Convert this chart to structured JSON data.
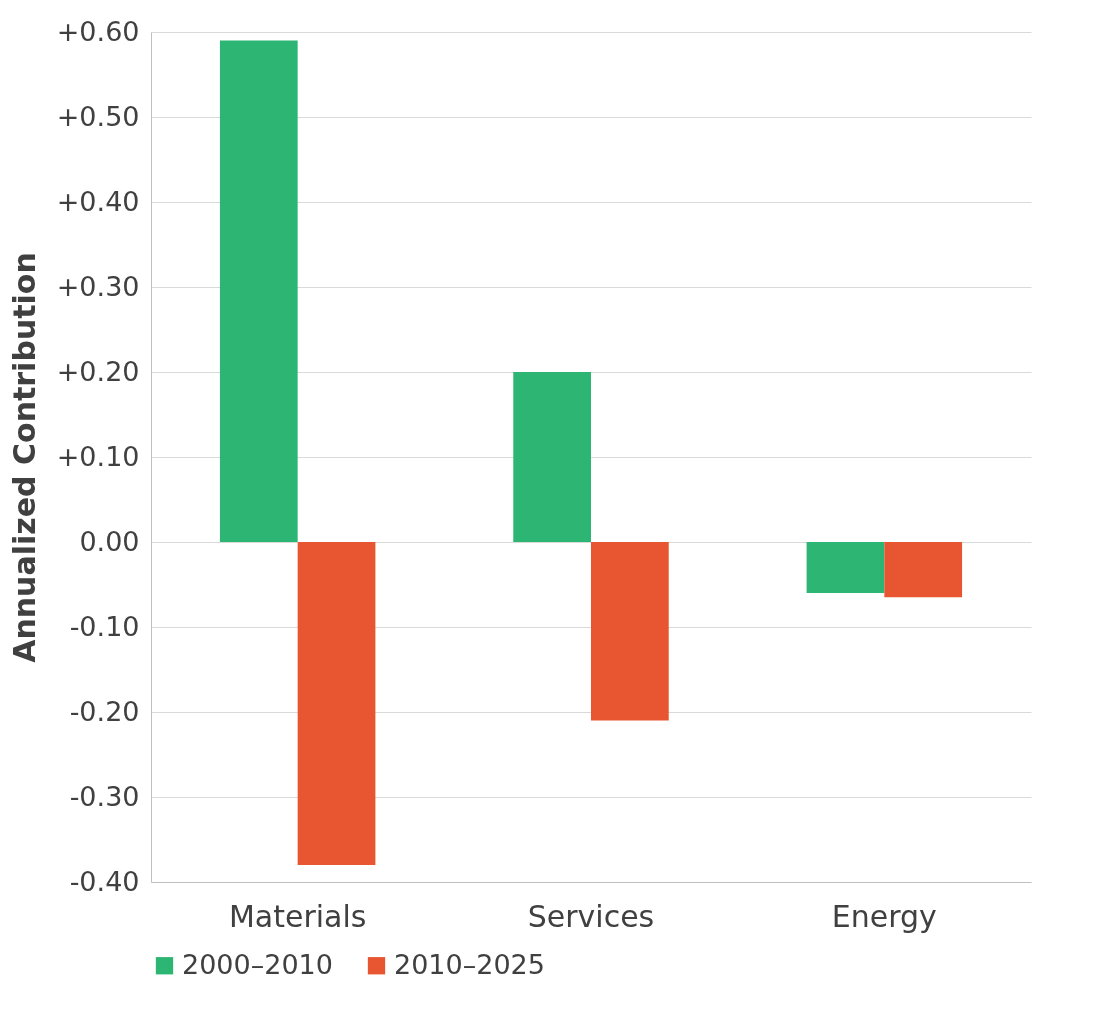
{
  "chart_data": {
    "type": "bar",
    "ylabel": "Annualized Contribution",
    "categories": [
      "Materials",
      "Services",
      "Energy"
    ],
    "series": [
      {
        "name": "2000–2010",
        "color": "#2db673",
        "values": [
          0.59,
          0.2,
          -0.06
        ]
      },
      {
        "name": "2010–2025",
        "color": "#e85531",
        "values": [
          -0.38,
          -0.21,
          -0.065
        ]
      }
    ],
    "ylim": [
      -0.4,
      0.6
    ],
    "yticks": [
      {
        "value": -0.4,
        "label": "-0.40"
      },
      {
        "value": -0.3,
        "label": "-0.30"
      },
      {
        "value": -0.2,
        "label": "-0.20"
      },
      {
        "value": -0.1,
        "label": "-0.10"
      },
      {
        "value": 0,
        "label": "0.00"
      },
      {
        "value": 0.1,
        "label": "+0.10"
      },
      {
        "value": 0.2,
        "label": "+0.20"
      },
      {
        "value": 0.3,
        "label": "+0.30"
      },
      {
        "value": 0.4,
        "label": "+0.40"
      },
      {
        "value": 0.5,
        "label": "+0.50"
      },
      {
        "value": 0.6,
        "label": "+0.60"
      }
    ],
    "grid": "y",
    "legend": "bottom"
  }
}
